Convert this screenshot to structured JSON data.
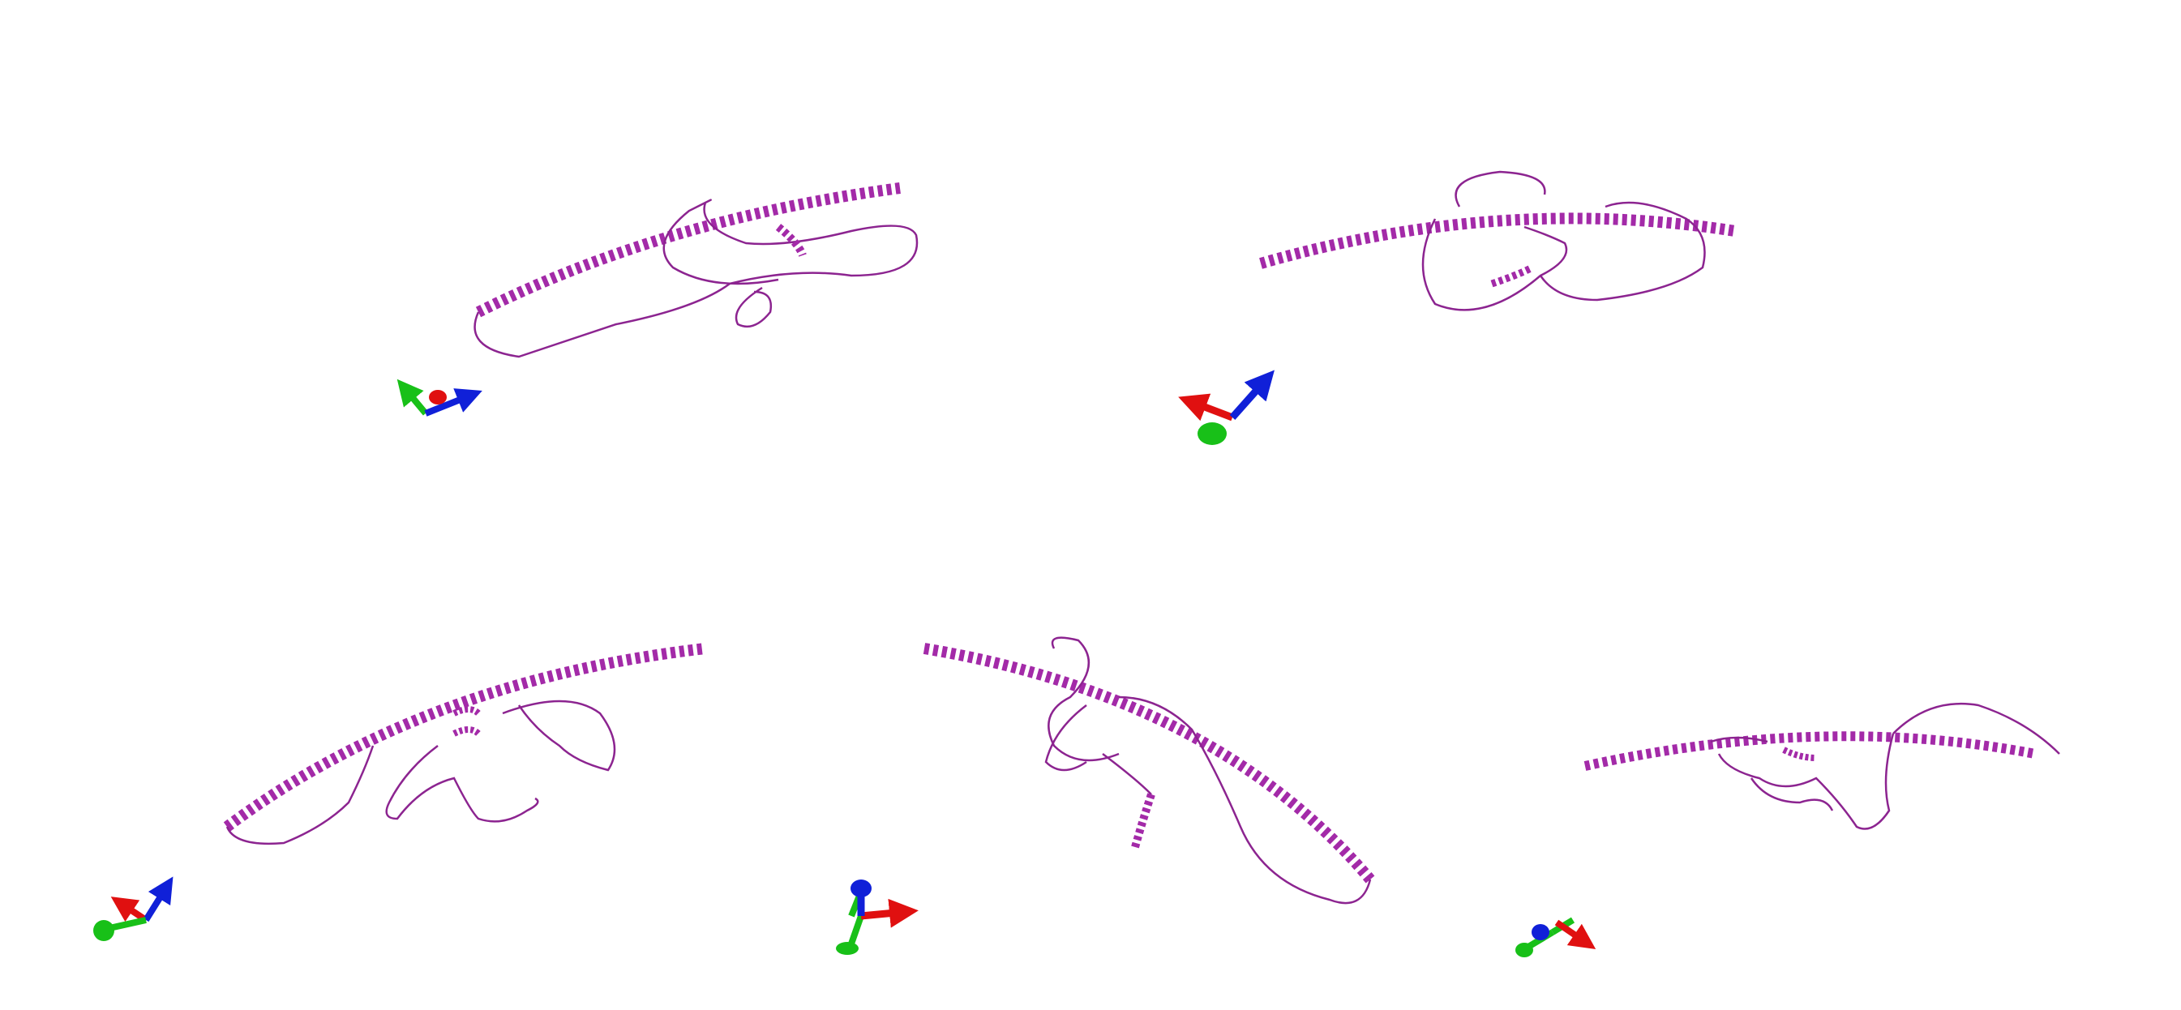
{
  "image": {
    "background": "#ffffff",
    "description_free": true
  },
  "colors": {
    "ribbon": "#a32aa8",
    "ribbon_dark": "#6e1a73",
    "coil": "#8c2490",
    "axis_x": "#e01010",
    "axis_y": "#18c018",
    "axis_z": "#1020d8"
  },
  "views": [
    {
      "id": "view-1",
      "axes_icon": "axes-triad-icon"
    },
    {
      "id": "view-2",
      "axes_icon": "axes-triad-icon"
    },
    {
      "id": "view-3",
      "axes_icon": "axes-triad-icon"
    },
    {
      "id": "view-4",
      "axes_icon": "axes-triad-icon"
    },
    {
      "id": "view-5",
      "axes_icon": "axes-triad-icon"
    }
  ]
}
